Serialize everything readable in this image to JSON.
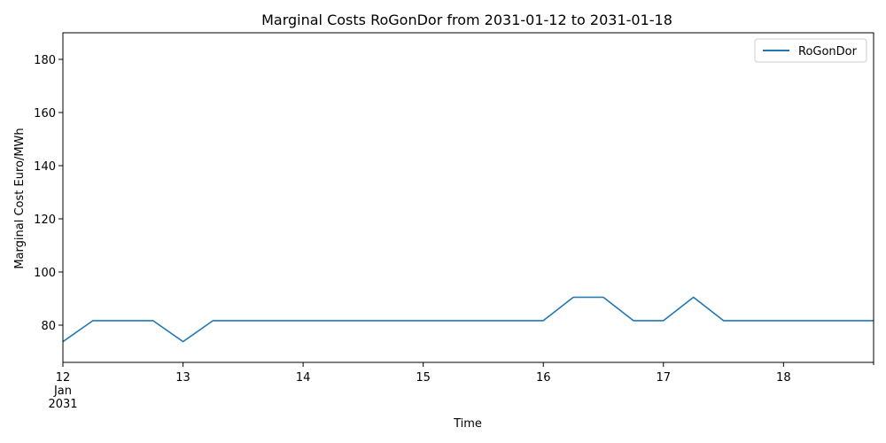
{
  "chart_data": {
    "type": "line",
    "title": "Marginal Costs RoGonDor from 2031-01-12 to 2031-01-18",
    "xlabel": "Time",
    "ylabel": "Marginal Cost Euro/MWh",
    "x_tick_labels": [
      {
        "day": 12,
        "lines": [
          "12",
          "Jan",
          "2031"
        ]
      },
      {
        "day": 13,
        "lines": [
          "13"
        ]
      },
      {
        "day": 14,
        "lines": [
          "14"
        ]
      },
      {
        "day": 15,
        "lines": [
          "15"
        ]
      },
      {
        "day": 16,
        "lines": [
          "16"
        ]
      },
      {
        "day": 17,
        "lines": [
          "17"
        ]
      },
      {
        "day": 18,
        "lines": [
          "18"
        ]
      }
    ],
    "xlim_days": [
      12,
      18.75
    ],
    "ylim": [
      66,
      190
    ],
    "y_ticks": [
      80,
      100,
      120,
      140,
      160,
      180
    ],
    "legend": {
      "position": "top-right"
    },
    "grid": false,
    "series": [
      {
        "name": "RoGonDor",
        "color": "#1f77b4",
        "points": [
          {
            "day": 12.0,
            "y": 73.8
          },
          {
            "day": 12.25,
            "y": 81.7
          },
          {
            "day": 12.5,
            "y": 81.7
          },
          {
            "day": 12.75,
            "y": 81.7
          },
          {
            "day": 13.0,
            "y": 73.8
          },
          {
            "day": 13.25,
            "y": 81.7
          },
          {
            "day": 13.5,
            "y": 81.7
          },
          {
            "day": 13.75,
            "y": 81.7
          },
          {
            "day": 14.0,
            "y": 81.7
          },
          {
            "day": 14.25,
            "y": 81.7
          },
          {
            "day": 14.5,
            "y": 81.7
          },
          {
            "day": 14.75,
            "y": 81.7
          },
          {
            "day": 15.0,
            "y": 81.7
          },
          {
            "day": 15.25,
            "y": 81.7
          },
          {
            "day": 15.5,
            "y": 81.7
          },
          {
            "day": 15.75,
            "y": 81.7
          },
          {
            "day": 16.0,
            "y": 81.7
          },
          {
            "day": 16.25,
            "y": 90.5
          },
          {
            "day": 16.5,
            "y": 90.5
          },
          {
            "day": 16.75,
            "y": 81.7
          },
          {
            "day": 17.0,
            "y": 81.7
          },
          {
            "day": 17.25,
            "y": 90.5
          },
          {
            "day": 17.5,
            "y": 81.7
          },
          {
            "day": 17.75,
            "y": 81.7
          },
          {
            "day": 18.0,
            "y": 81.7
          },
          {
            "day": 18.25,
            "y": 81.7
          },
          {
            "day": 18.5,
            "y": 81.7
          },
          {
            "day": 18.75,
            "y": 81.7
          }
        ]
      }
    ]
  }
}
